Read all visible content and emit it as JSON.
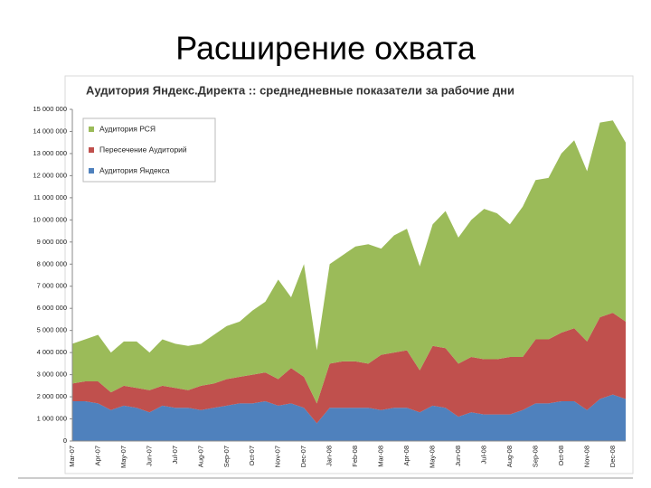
{
  "slide_title": "Расширение охвата",
  "chart_data": {
    "type": "stacked-area",
    "title": "Аудитория Яндекс.Директа :: среднедневные показатели за рабочие дни",
    "categories": [
      "Mar-07",
      null,
      "Apr-07",
      null,
      "May-07",
      null,
      "Jun-07",
      null,
      "Jul-07",
      null,
      "Aug-07",
      null,
      "Sep-07",
      null,
      "Oct-07",
      null,
      "Nov-07",
      null,
      "Dec-07",
      null,
      "Jan-08",
      null,
      "Feb-08",
      null,
      "Mar-08",
      null,
      "Apr-08",
      null,
      "May-08",
      null,
      "Jun-08",
      null,
      "Jul-08",
      null,
      "Aug-08",
      null,
      "Sep-08",
      null,
      "Oct-08",
      null,
      "Nov-08",
      null,
      "Dec-08",
      null
    ],
    "series": [
      {
        "name": "Аудитория Яндекса",
        "color": "#4f81bd",
        "values": [
          1800000,
          1800000,
          1700000,
          1400000,
          1600000,
          1500000,
          1300000,
          1600000,
          1500000,
          1500000,
          1400000,
          1500000,
          1600000,
          1700000,
          1700000,
          1800000,
          1600000,
          1700000,
          1500000,
          800000,
          1500000,
          1500000,
          1500000,
          1500000,
          1400000,
          1500000,
          1500000,
          1300000,
          1600000,
          1500000,
          1100000,
          1300000,
          1200000,
          1200000,
          1200000,
          1400000,
          1700000,
          1700000,
          1800000,
          1800000,
          1400000,
          1900000,
          2100000,
          1900000
        ]
      },
      {
        "name": "Пересечение Аудиторий",
        "color": "#c0504d",
        "values": [
          800000,
          900000,
          1000000,
          800000,
          900000,
          900000,
          1000000,
          900000,
          900000,
          800000,
          1100000,
          1100000,
          1200000,
          1200000,
          1300000,
          1300000,
          1200000,
          1600000,
          1400000,
          900000,
          2000000,
          2100000,
          2100000,
          2000000,
          2500000,
          2500000,
          2600000,
          1900000,
          2700000,
          2700000,
          2400000,
          2500000,
          2500000,
          2500000,
          2600000,
          2400000,
          2900000,
          2900000,
          3100000,
          3300000,
          3100000,
          3700000,
          3700000,
          3500000
        ]
      },
      {
        "name": "Аудитория РСЯ",
        "color": "#9bbb59",
        "values": [
          1800000,
          1900000,
          2100000,
          1800000,
          2000000,
          2100000,
          1700000,
          2100000,
          2000000,
          2000000,
          1900000,
          2200000,
          2400000,
          2500000,
          2900000,
          3200000,
          4500000,
          3200000,
          5100000,
          2400000,
          4500000,
          4800000,
          5200000,
          5400000,
          4800000,
          5300000,
          5500000,
          4700000,
          5500000,
          6200000,
          5700000,
          6200000,
          6800000,
          6600000,
          6000000,
          6800000,
          7200000,
          7300000,
          8100000,
          8500000,
          7700000,
          8800000,
          8700000,
          8100000
        ]
      }
    ],
    "ylim": [
      0,
      15000000
    ],
    "yticks": [
      0,
      {
        "value": 1000000,
        "label": "1 000 000"
      },
      {
        "value": 2000000,
        "label": "2 000 000"
      },
      {
        "value": 3000000,
        "label": "3 000 000"
      },
      {
        "value": 4000000,
        "label": "4 000 000"
      },
      {
        "value": 5000000,
        "label": "5 000 000"
      },
      {
        "value": 6000000,
        "label": "6 000 000"
      },
      {
        "value": 7000000,
        "label": "7 000 000"
      },
      {
        "value": 8000000,
        "label": "8 000 000"
      },
      {
        "value": 9000000,
        "label": "9 000 000"
      },
      {
        "value": 10000000,
        "label": "10 000 000"
      },
      {
        "value": 11000000,
        "label": "11 000 000"
      },
      {
        "value": 12000000,
        "label": "12 000 000"
      },
      {
        "value": 13000000,
        "label": "13 000 000"
      },
      {
        "value": 14000000,
        "label": "14 000 000"
      },
      {
        "value": 15000000,
        "label": "15 000 000"
      }
    ],
    "legend": "upper left"
  }
}
